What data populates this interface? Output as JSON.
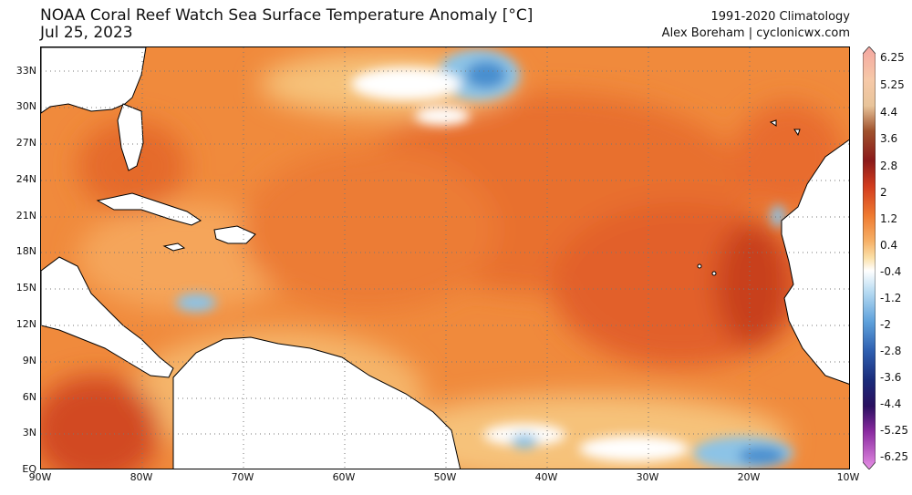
{
  "header": {
    "title": "NOAA Coral Reef Watch Sea Surface Temperature Anomaly [°C]",
    "date": "Jul 25, 2023",
    "climatology": "1991-2020 Climatology",
    "credit": "Alex Boreham | cyclonicwx.com"
  },
  "axes": {
    "lat_labels": [
      "33N",
      "30N",
      "27N",
      "24N",
      "21N",
      "18N",
      "15N",
      "12N",
      "9N",
      "6N",
      "3N",
      "EQ"
    ],
    "lon_labels": [
      "90W",
      "80W",
      "70W",
      "60W",
      "50W",
      "40W",
      "30W",
      "20W",
      "10W"
    ],
    "lat_range": [
      0,
      35
    ],
    "lon_range": [
      -90,
      -10
    ]
  },
  "colorbar": {
    "labels": [
      "6.25",
      "5.25",
      "4.4",
      "3.6",
      "2.8",
      "2",
      "1.2",
      "0.4",
      "-0.4",
      "-1.2",
      "-2",
      "-2.8",
      "-3.6",
      "-4.4",
      "-5.25",
      "-6.25"
    ],
    "colors": {
      "land": "#ffffff",
      "ocean_warm": "#f08a3c",
      "ocean_hot": "#e2612a",
      "ocean_very_hot": "#c8401e",
      "ocean_mild": "#f5b56a",
      "near_zero": "#ffffff",
      "cool": "#8cc3e6",
      "cold": "#4a8fcf"
    }
  }
}
